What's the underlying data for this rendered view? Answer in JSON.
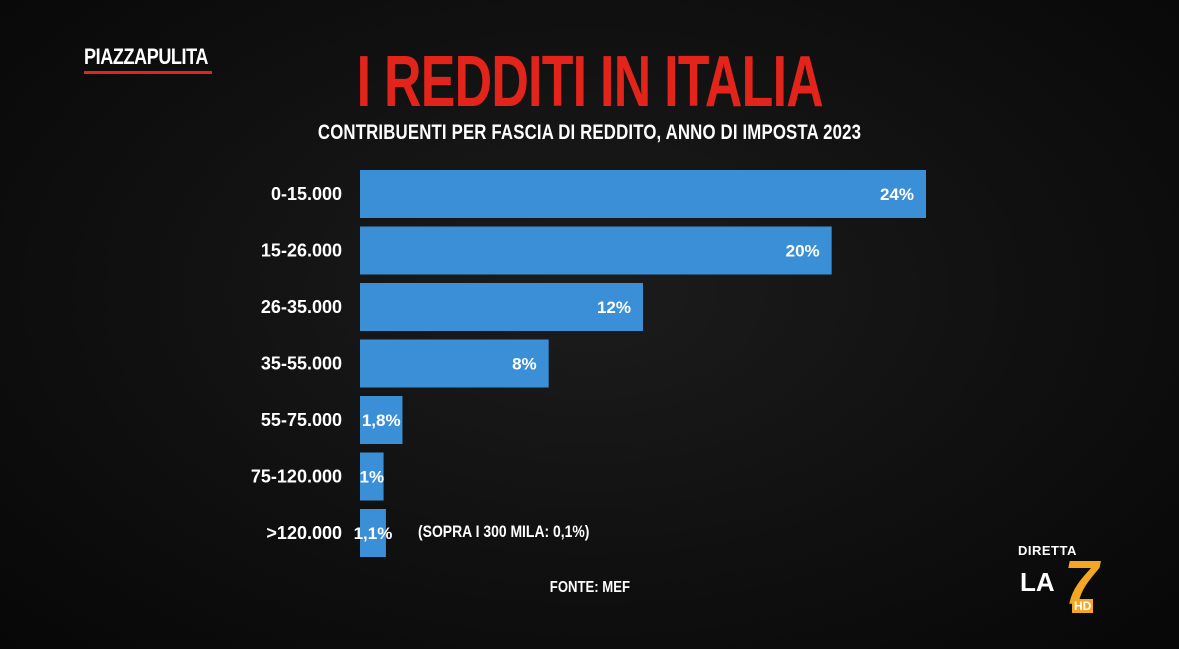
{
  "brand": {
    "part1": "PIAZZA",
    "part2": "PULITA",
    "accent": "#e3241b"
  },
  "title": "I REDDITI IN ITALIA",
  "subtitle": "CONTRIBUENTI PER FASCIA DI REDDITO, ANNO DI IMPOSTA 2023",
  "note": "(SOPRA I 300 MILA: 0,1%)",
  "source": "FONTE: MEF",
  "channel": {
    "live_label": "DIRETTA",
    "name": "LA",
    "number": "7",
    "quality": "HD"
  },
  "colors": {
    "bar": "#3a8fd6",
    "title": "#e3241b",
    "text": "#ffffff",
    "background": "#0b0b0b"
  },
  "chart_data": {
    "type": "bar",
    "orientation": "horizontal",
    "title": "I REDDITI IN ITALIA",
    "subtitle": "CONTRIBUENTI PER FASCIA DI REDDITO, ANNO DI IMPOSTA 2023",
    "categories": [
      "0-15.000",
      "15-26.000",
      "26-35.000",
      "35-55.000",
      "55-75.000",
      "75-120.000",
      ">120.000"
    ],
    "values": [
      24,
      20,
      12,
      8,
      1.8,
      1,
      1.1
    ],
    "value_labels": [
      "24%",
      "20%",
      "12%",
      "8%",
      "1,8%",
      "1%",
      "1,1%"
    ],
    "unit": "%",
    "xlim": [
      0,
      24
    ],
    "grid": false,
    "annotations": [
      "(SOPRA I 300 MILA: 0,1%)"
    ],
    "source": "FONTE: MEF"
  }
}
